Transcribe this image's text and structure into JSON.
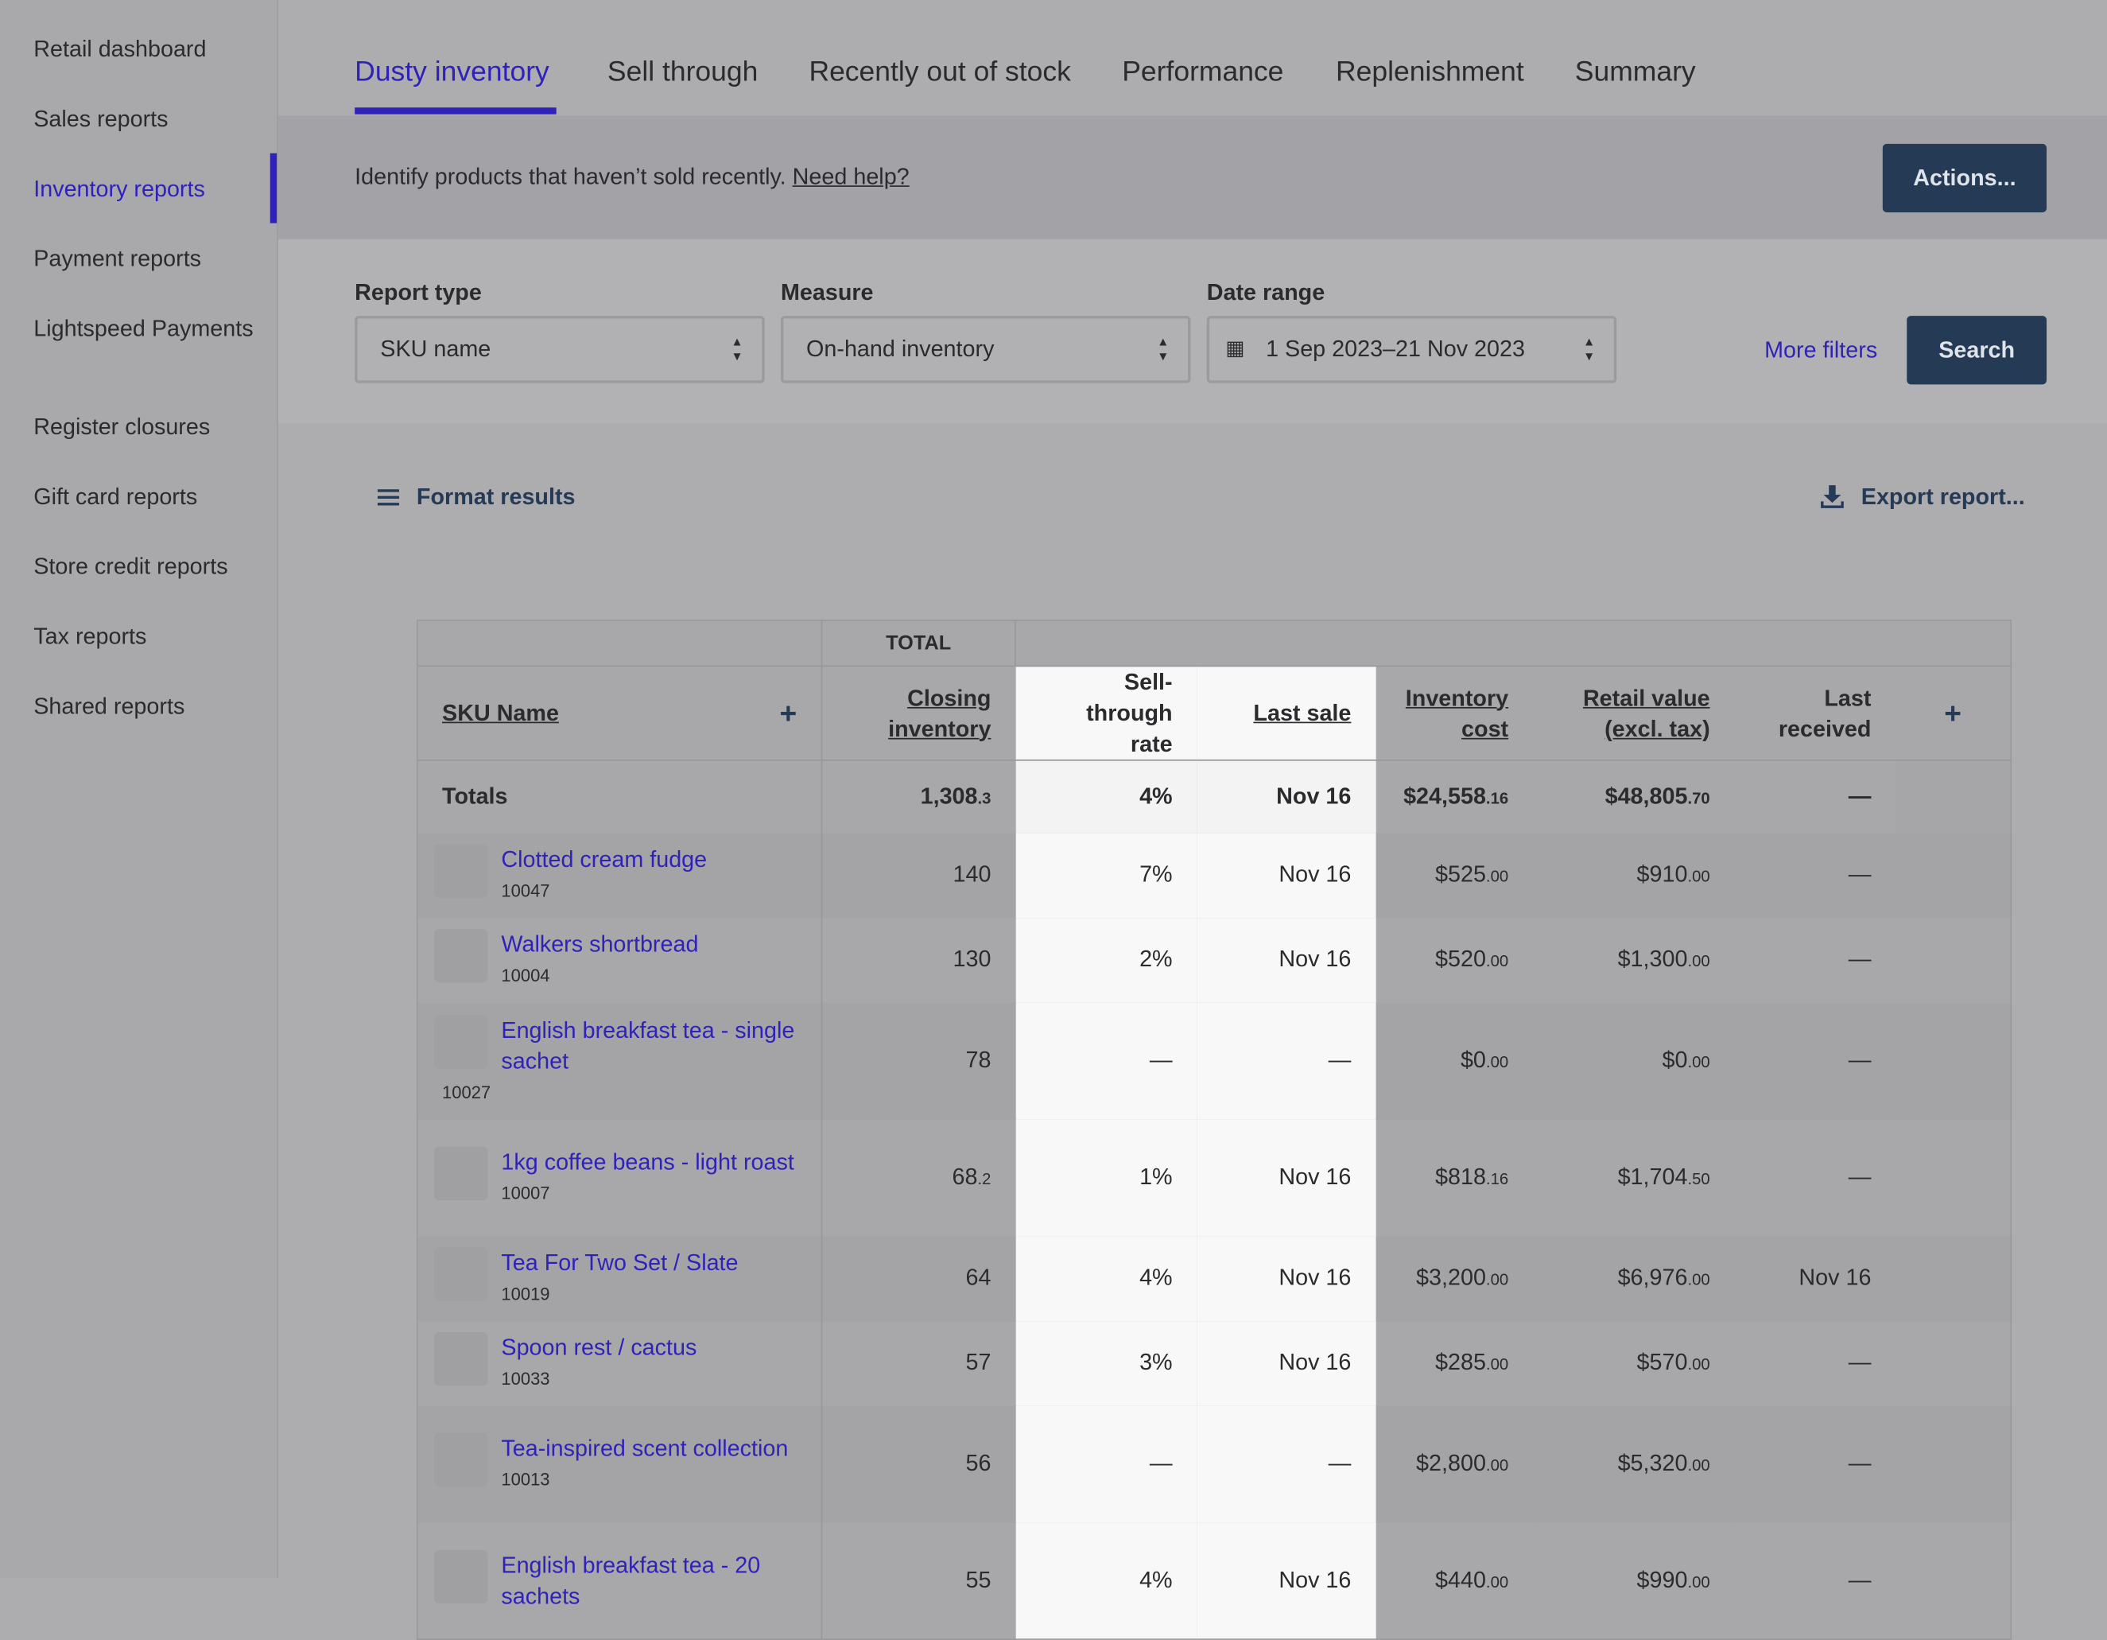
{
  "nav": [
    "Retail dashboard",
    "Sales reports",
    "Inventory reports",
    "Payment reports",
    "Lightspeed Payments",
    "Register closures",
    "Gift card reports",
    "Store credit reports",
    "Tax reports",
    "Shared reports"
  ],
  "tabs": [
    "Dusty inventory",
    "Sell through",
    "Recently out of stock",
    "Performance",
    "Replenishment",
    "Summary"
  ],
  "info": {
    "text": "Identify products that haven’t sold recently.",
    "help": "Need help?",
    "action": "Actions..."
  },
  "filters": [
    {
      "label": "Report type",
      "value": "SKU name"
    },
    {
      "label": "Measure",
      "value": "On-hand inventory"
    },
    {
      "label": "Date range",
      "value": "1 Sep 2023–21 Nov 2023"
    }
  ],
  "more_filters": "More filters",
  "search": "Search",
  "format_results": "Format results",
  "export": "Export report...",
  "table": {
    "group": "TOTAL",
    "columns": [
      "SKU Name",
      "Closing inventory",
      "Sell-through rate",
      "Last sale",
      "Inventory cost",
      "Retail value (excl. tax)",
      "Last received"
    ],
    "totals": {
      "label": "Totals",
      "cells": [
        "1,308.3",
        "4%",
        "Nov 16",
        "$24,558.16",
        "$48,805.70",
        "—"
      ]
    },
    "rows": [
      {
        "name": "Clotted cream fudge",
        "sku": "10047",
        "cells": [
          "140",
          "7%",
          "Nov 16",
          "$525.00",
          "$910.00",
          "—"
        ]
      },
      {
        "name": "Walkers shortbread",
        "sku": "10004",
        "cells": [
          "130",
          "2%",
          "Nov 16",
          "$520.00",
          "$1,300.00",
          "—"
        ]
      },
      {
        "name": "English breakfast tea - single sachet",
        "sku": "10027",
        "cells": [
          "78",
          "—",
          "—",
          "$0.00",
          "$0.00",
          "—"
        ]
      },
      {
        "name": "1kg coffee beans - light roast",
        "sku": "10007",
        "cells": [
          "68.2",
          "1%",
          "Nov 16",
          "$818.16",
          "$1,704.50",
          "—"
        ]
      },
      {
        "name": "Tea For Two Set / Slate",
        "sku": "10019",
        "cells": [
          "64",
          "4%",
          "Nov 16",
          "$3,200.00",
          "$6,976.00",
          "Nov 16"
        ]
      },
      {
        "name": "Spoon rest / cactus",
        "sku": "10033",
        "cells": [
          "57",
          "3%",
          "Nov 16",
          "$285.00",
          "$570.00",
          "—"
        ]
      },
      {
        "name": "Tea-inspired scent collection",
        "sku": "10013",
        "cells": [
          "56",
          "—",
          "—",
          "$2,800.00",
          "$5,320.00",
          "—"
        ]
      },
      {
        "name": "English breakfast tea - 20 sachets",
        "sku": null,
        "cells": [
          "55",
          "4%",
          "Nov 16",
          "$440.00",
          "$990.00",
          "—"
        ]
      }
    ]
  }
}
